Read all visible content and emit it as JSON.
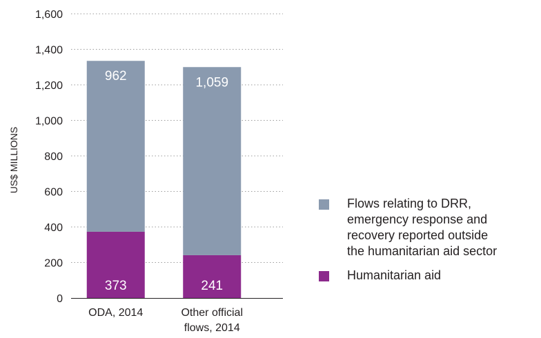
{
  "chart_data": {
    "type": "bar",
    "stacked": true,
    "categories": [
      "ODA, 2014",
      "Other official\nflows, 2014"
    ],
    "series": [
      {
        "name": "Humanitarian aid",
        "values": [
          373,
          241
        ],
        "color": "#8c2a8c"
      },
      {
        "name": "Flows relating to DRR,\nemergency response and\nrecovery reported outside\nthe humanitarian aid sector",
        "values": [
          962,
          1059
        ],
        "color": "#8a9aaf"
      }
    ],
    "data_labels": [
      [
        "373",
        "241"
      ],
      [
        "962",
        "1,059"
      ]
    ],
    "ylabel": "US$ MILLIONS",
    "ylim": [
      0,
      1600
    ],
    "yticks": [
      0,
      200,
      400,
      600,
      800,
      1000,
      1200,
      1400,
      1600
    ],
    "ytick_labels": [
      "0",
      "200",
      "400",
      "600",
      "800",
      "1,000",
      "1,200",
      "1,400",
      "1,600"
    ],
    "grid": true,
    "grid_style": "dotted",
    "legend_position": "right",
    "legend_order": [
      1,
      0
    ]
  }
}
